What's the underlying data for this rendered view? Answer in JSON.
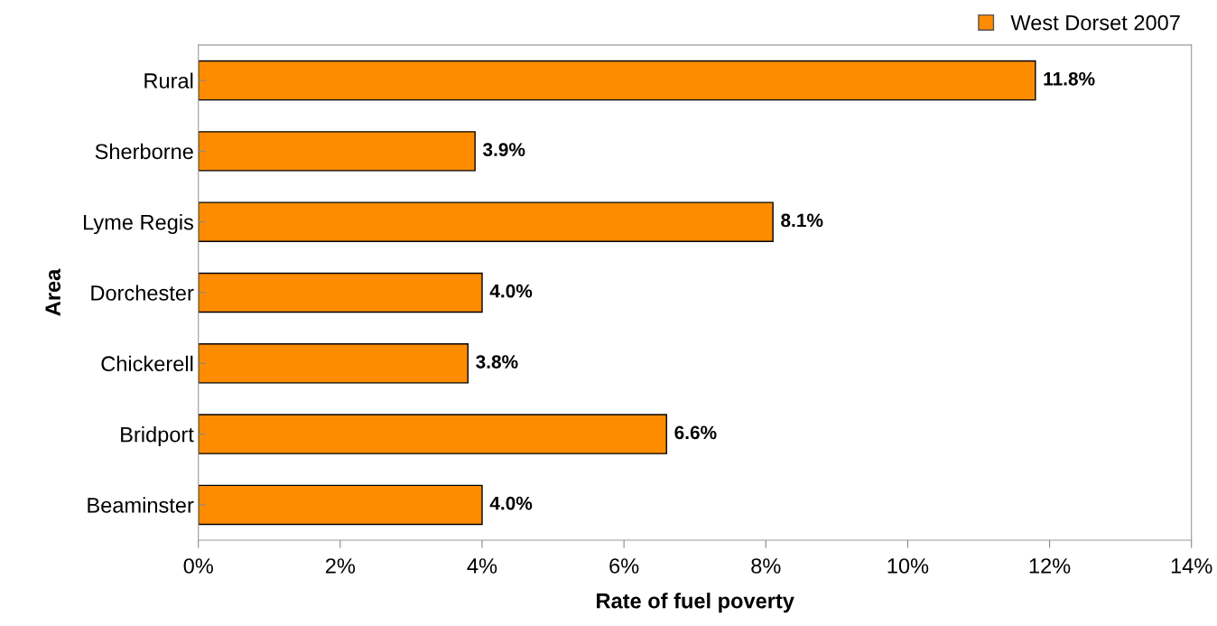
{
  "chart_data": {
    "type": "bar",
    "orientation": "horizontal",
    "xlabel": "Rate of fuel poverty",
    "ylabel": "Area",
    "categories": [
      "Rural",
      "Sherborne",
      "Lyme Regis",
      "Dorchester",
      "Chickerell",
      "Bridport",
      "Beaminster"
    ],
    "series": [
      {
        "name": "West Dorset 2007",
        "color": "#ff8c00",
        "values": [
          11.8,
          3.9,
          8.1,
          4.0,
          3.8,
          6.6,
          4.0
        ],
        "value_labels": [
          "11.8%",
          "3.9%",
          "8.1%",
          "4.0%",
          "3.8%",
          "6.6%",
          "4.0%"
        ]
      }
    ],
    "xlim": [
      0,
      14
    ],
    "xticks": [
      {
        "value": 0,
        "label": "0%"
      },
      {
        "value": 2,
        "label": "2%"
      },
      {
        "value": 4,
        "label": "4%"
      },
      {
        "value": 6,
        "label": "6%"
      },
      {
        "value": 8,
        "label": "8%"
      },
      {
        "value": 10,
        "label": "10%"
      },
      {
        "value": 12,
        "label": "12%"
      },
      {
        "value": 14,
        "label": "14%"
      }
    ],
    "grid": false,
    "legend": "top right"
  }
}
